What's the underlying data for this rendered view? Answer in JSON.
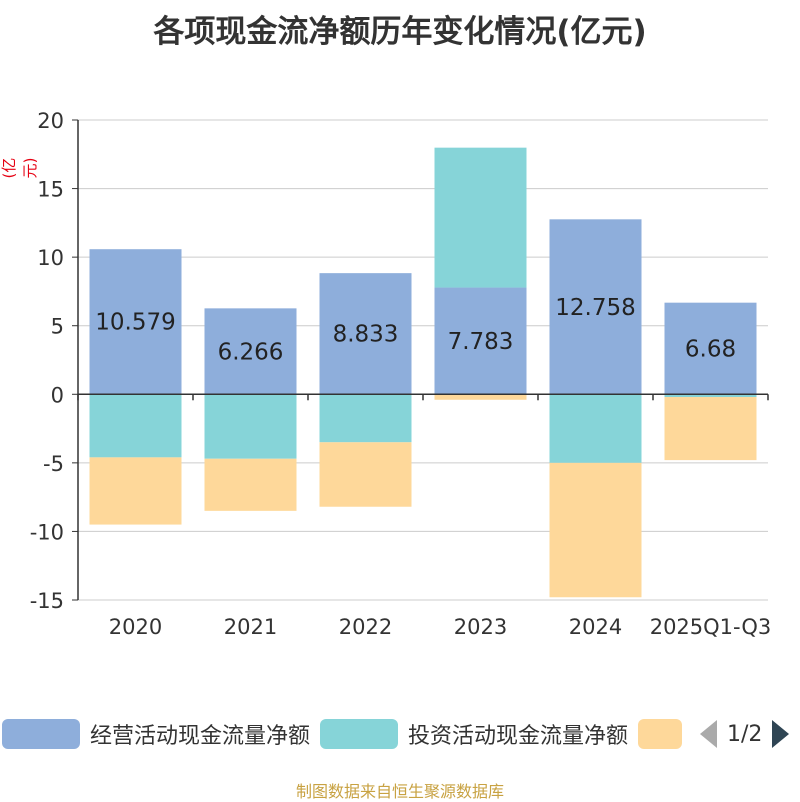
{
  "title": "各项现金流净额历年变化情况(亿元)",
  "unit_label": "(亿元)",
  "source": "制图数据来自恒生聚源数据库",
  "chart_data": {
    "type": "bar",
    "stacked": true,
    "categories": [
      "2020",
      "2021",
      "2022",
      "2023",
      "2024",
      "2025Q1-Q3"
    ],
    "ylim": [
      -15,
      20
    ],
    "yticks": [
      20,
      15,
      10,
      5,
      0,
      -5,
      -10,
      -15
    ],
    "series": [
      {
        "name": "经营活动现金流量净额",
        "color": "#8eaedb",
        "values": [
          10.579,
          6.266,
          8.833,
          7.783,
          12.758,
          6.68
        ],
        "labels": [
          "10.579",
          "6.266",
          "8.833",
          "7.783",
          "12.758",
          "6.68"
        ]
      },
      {
        "name": "投资活动现金流量净额",
        "color": "#86d4d8",
        "values": [
          -4.6,
          -4.7,
          -3.5,
          10.2,
          -5.0,
          -0.2
        ]
      },
      {
        "name": "",
        "color": "#fed89a",
        "values": [
          -4.9,
          -3.8,
          -4.7,
          -0.4,
          -9.8,
          -4.6
        ]
      }
    ],
    "grid": true
  },
  "legend": {
    "items": [
      {
        "label": "经营活动现金流量净额",
        "color": "#8eaedb"
      },
      {
        "label": "投资活动现金流量净额",
        "color": "#86d4d8"
      },
      {
        "label": "",
        "color": "#fed89a"
      }
    ],
    "page": "1/2"
  }
}
